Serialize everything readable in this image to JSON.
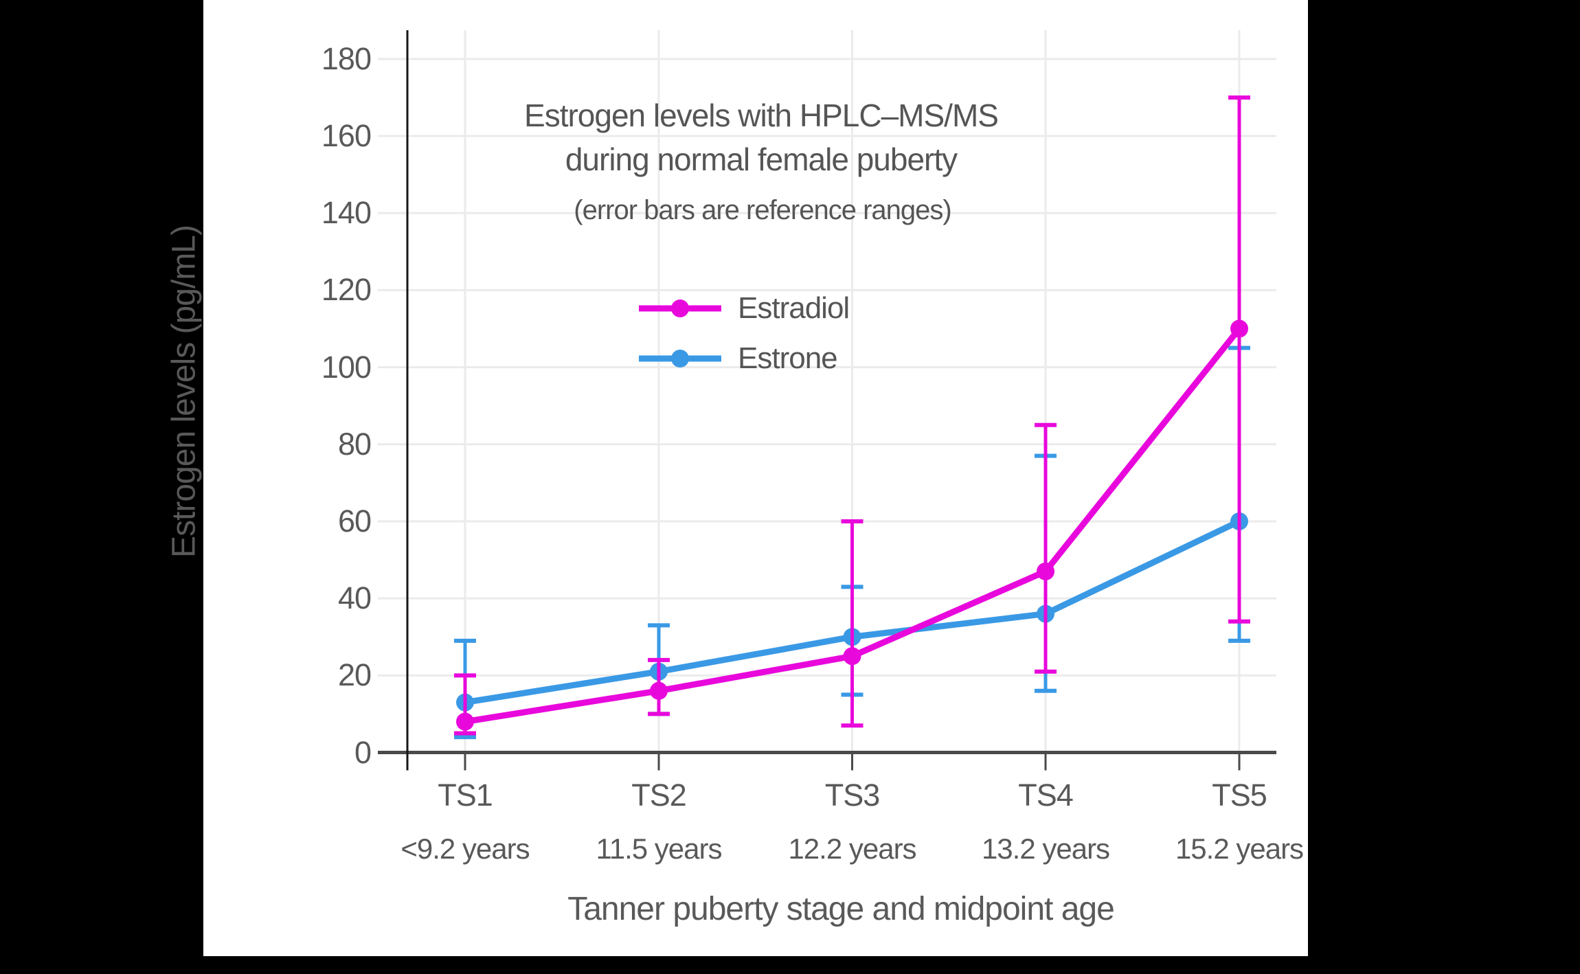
{
  "colors": {
    "background": "#000000",
    "card": "#ffffff",
    "grid": "#ebebeb",
    "x_axis": "#4a4a4a",
    "y_axis": "#161616",
    "text": "#595959",
    "estradiol": "#e808dc",
    "estrone": "#3a99e5"
  },
  "chart_data": {
    "type": "line",
    "title_line1": "Estrogen levels with HPLC–MS/MS",
    "title_line2": "during normal female puberty",
    "subtitle": "(error bars are reference ranges)",
    "xlabel": "Tanner puberty stage and midpoint age",
    "ylabel": "Estrogen levels (pg/mL)",
    "categories": [
      "TS1",
      "TS2",
      "TS3",
      "TS4",
      "TS5"
    ],
    "category_sublabels": [
      "<9.2 years",
      "11.5 years",
      "12.2 years",
      "13.2 years",
      "15.2 years"
    ],
    "yticks": [
      0,
      20,
      40,
      60,
      80,
      100,
      120,
      140,
      160,
      180
    ],
    "ylim": [
      0,
      187
    ],
    "grid": true,
    "legend_position": "inside-upper-left",
    "error_bar_note": "error bars are reference ranges",
    "series": [
      {
        "name": "Estradiol",
        "color": "#e808dc",
        "values": [
          8,
          16,
          25,
          47,
          110
        ],
        "err_low": [
          5,
          10,
          7,
          21,
          34
        ],
        "err_high": [
          20,
          24,
          60,
          85,
          170
        ]
      },
      {
        "name": "Estrone",
        "color": "#3a99e5",
        "values": [
          13,
          21,
          30,
          36,
          60
        ],
        "err_low": [
          4,
          10,
          15,
          16,
          29
        ],
        "err_high": [
          29,
          33,
          43,
          77,
          105
        ]
      }
    ]
  }
}
